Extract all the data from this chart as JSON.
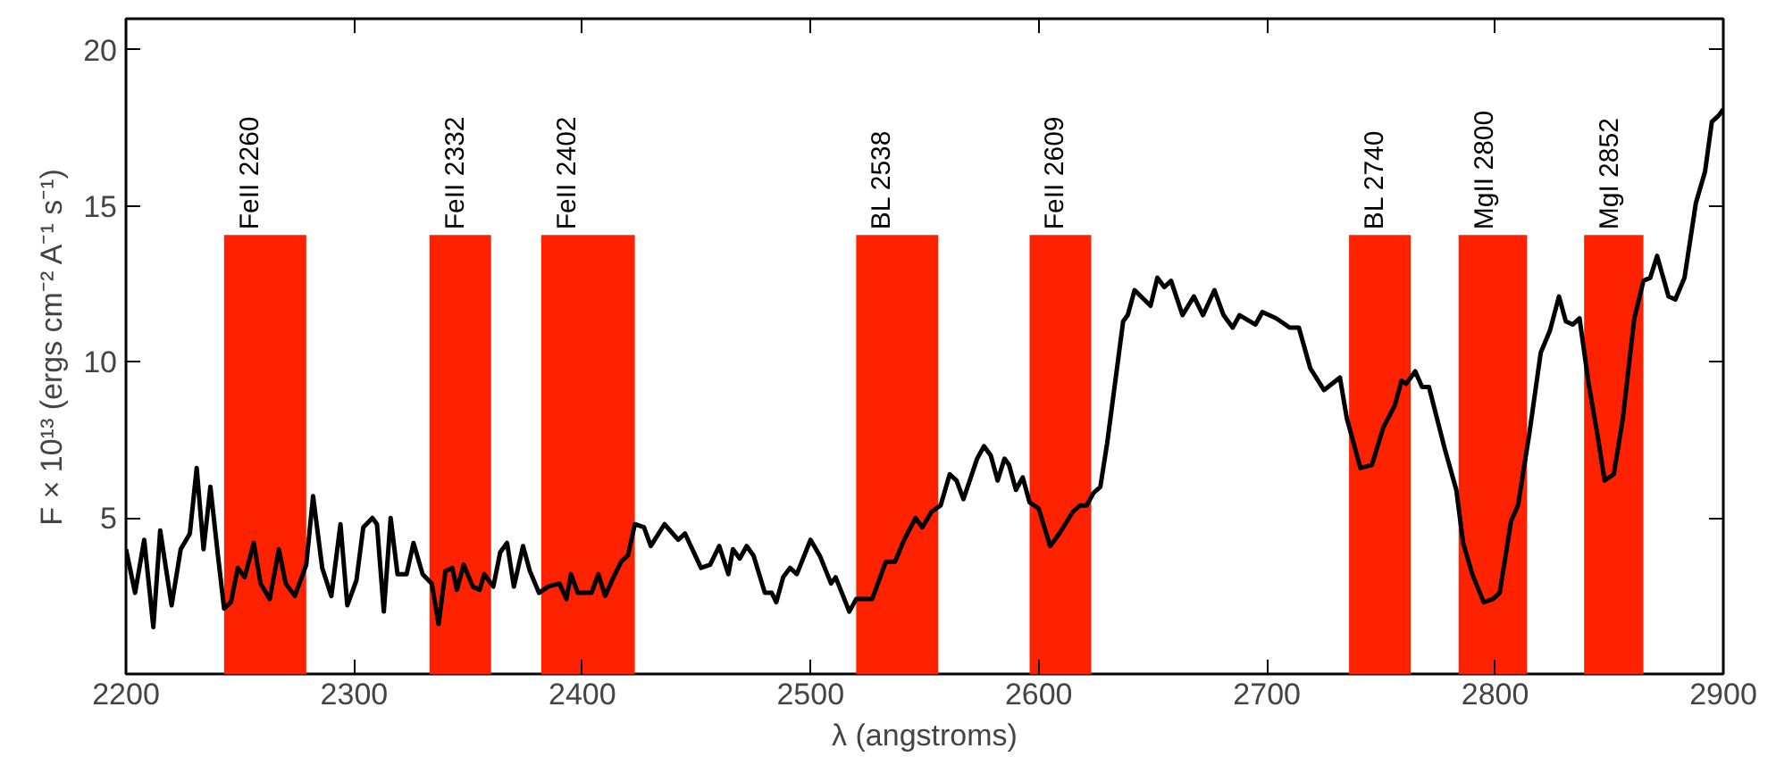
{
  "chart_data": {
    "type": "line",
    "xlabel": "λ (angstroms)",
    "ylabel": "F × 10¹³ (ergs cm⁻² A⁻¹ s⁻¹)",
    "xlim": [
      2200,
      2900
    ],
    "ylim": [
      0,
      21
    ],
    "xticks": [
      2200,
      2300,
      2400,
      2500,
      2600,
      2700,
      2800,
      2900
    ],
    "yticks": [
      5,
      10,
      15,
      20
    ],
    "grid": false,
    "marker": "none",
    "line_style": "solid",
    "series": [
      {
        "color": "#000000",
        "x": [
          2200,
          2204,
          2208,
          2212,
          2215,
          2220,
          2224,
          2228,
          2231,
          2234,
          2237,
          2240,
          2243,
          2246,
          2249,
          2252,
          2256,
          2259,
          2263,
          2267,
          2270,
          2274,
          2279,
          2282,
          2286,
          2290,
          2294,
          2297,
          2301,
          2304,
          2308,
          2310,
          2313,
          2316,
          2319,
          2323,
          2326,
          2330,
          2334,
          2337,
          2340,
          2343,
          2345,
          2348,
          2352,
          2355,
          2357,
          2361,
          2364,
          2367,
          2370,
          2374,
          2377,
          2381,
          2385,
          2390,
          2393,
          2395,
          2398,
          2404,
          2407,
          2410,
          2413,
          2417,
          2420,
          2423,
          2427,
          2430,
          2436,
          2442,
          2445,
          2452,
          2456,
          2460,
          2464,
          2466,
          2469,
          2472,
          2475,
          2480,
          2483,
          2485,
          2488,
          2491,
          2494,
          2500,
          2504,
          2509,
          2511,
          2517,
          2520,
          2527,
          2533,
          2537,
          2541,
          2546,
          2549,
          2553,
          2557,
          2561,
          2564,
          2567,
          2573,
          2576,
          2579,
          2582,
          2585,
          2587,
          2590,
          2593,
          2596,
          2600,
          2605,
          2609,
          2615,
          2618,
          2621,
          2624,
          2627,
          2630,
          2637,
          2639,
          2642,
          2649,
          2652,
          2655,
          2658,
          2663,
          2668,
          2672,
          2677,
          2681,
          2685,
          2688,
          2695,
          2698,
          2704,
          2710,
          2714,
          2719,
          2725,
          2732,
          2735,
          2741,
          2746,
          2751,
          2756,
          2759,
          2761,
          2765,
          2768,
          2771,
          2778,
          2783,
          2786,
          2790,
          2795,
          2799,
          2802,
          2807,
          2810,
          2815,
          2820,
          2824,
          2828,
          2831,
          2834,
          2837,
          2841,
          2845,
          2848,
          2852,
          2856,
          2861,
          2865,
          2868,
          2871,
          2876,
          2879,
          2883,
          2888,
          2892,
          2895,
          2898,
          2900
        ],
        "values": [
          4.0,
          2.6,
          4.3,
          1.5,
          4.6,
          2.2,
          4.0,
          4.5,
          6.6,
          4.0,
          6.0,
          4.0,
          2.1,
          2.3,
          3.4,
          3.1,
          4.2,
          2.9,
          2.4,
          4.0,
          2.9,
          2.5,
          3.5,
          5.7,
          3.4,
          2.5,
          4.8,
          2.2,
          3.0,
          4.7,
          5.0,
          4.8,
          2.0,
          5.0,
          3.2,
          3.2,
          4.2,
          3.2,
          2.9,
          1.6,
          3.3,
          3.4,
          2.7,
          3.5,
          2.8,
          2.7,
          3.2,
          2.8,
          3.9,
          4.2,
          2.8,
          4.1,
          3.3,
          2.6,
          2.8,
          2.9,
          2.4,
          3.2,
          2.6,
          2.6,
          3.2,
          2.5,
          3.0,
          3.6,
          3.8,
          4.8,
          4.7,
          4.1,
          4.8,
          4.3,
          4.5,
          3.4,
          3.5,
          4.1,
          3.2,
          4.0,
          3.7,
          4.1,
          3.8,
          2.6,
          2.6,
          2.3,
          3.1,
          3.4,
          3.2,
          4.3,
          3.8,
          2.9,
          3.1,
          2.0,
          2.4,
          2.4,
          3.6,
          3.6,
          4.3,
          5.0,
          4.7,
          5.2,
          5.4,
          6.4,
          6.2,
          5.6,
          6.9,
          7.3,
          7.0,
          6.2,
          6.9,
          6.7,
          5.9,
          6.3,
          5.5,
          5.3,
          4.1,
          4.5,
          5.2,
          5.4,
          5.4,
          5.8,
          6.0,
          7.4,
          11.3,
          11.5,
          12.3,
          11.8,
          12.7,
          12.4,
          12.6,
          11.5,
          12.1,
          11.5,
          12.3,
          11.5,
          11.1,
          11.5,
          11.2,
          11.6,
          11.4,
          11.1,
          11.1,
          9.8,
          9.1,
          9.5,
          8.2,
          6.6,
          6.7,
          7.9,
          8.6,
          9.4,
          9.3,
          9.7,
          9.2,
          9.2,
          7.2,
          5.9,
          4.2,
          3.2,
          2.3,
          2.4,
          2.6,
          4.9,
          5.4,
          7.7,
          10.3,
          11.0,
          12.1,
          11.3,
          11.2,
          11.4,
          9.3,
          7.6,
          6.2,
          6.4,
          8.2,
          11.4,
          12.6,
          12.7,
          13.4,
          12.1,
          12.0,
          12.7,
          15.1,
          16.1,
          17.7,
          17.9,
          18.1
        ]
      }
    ],
    "bands": [
      {
        "axis": "x",
        "from": 2243,
        "to": 2279,
        "label": "FeII  2260",
        "color": "#ff2200"
      },
      {
        "axis": "x",
        "from": 2333,
        "to": 2360,
        "label": "FeII  2332",
        "color": "#ff2200"
      },
      {
        "axis": "x",
        "from": 2382,
        "to": 2423,
        "label": "FeII  2402",
        "color": "#ff2200"
      },
      {
        "axis": "x",
        "from": 2520,
        "to": 2556,
        "label": "BL  2538",
        "color": "#ff2200"
      },
      {
        "axis": "x",
        "from": 2596,
        "to": 2623,
        "label": "FeII  2609",
        "color": "#ff2200"
      },
      {
        "axis": "x",
        "from": 2736,
        "to": 2763,
        "label": "BL  2740",
        "color": "#ff2200"
      },
      {
        "axis": "x",
        "from": 2784,
        "to": 2814,
        "label": "MgII  2800",
        "color": "#ff2200"
      },
      {
        "axis": "x",
        "from": 2839,
        "to": 2865,
        "label": "MgI  2852",
        "color": "#ff2200"
      }
    ]
  }
}
